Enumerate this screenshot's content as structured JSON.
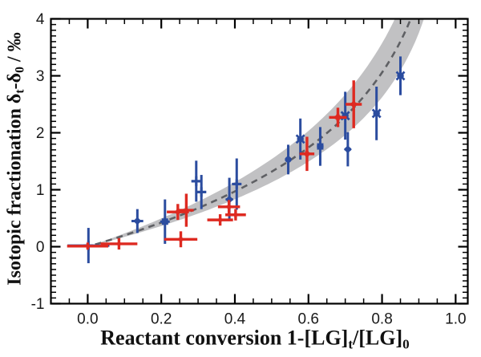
{
  "figure": {
    "background": "#ffffff",
    "frame_color": "#000000",
    "text_color": "#111111",
    "description": "Scatter plot of isotopic fractionation versus reactant conversion with two data series (blue, red), error bars, a dashed Rayleigh model curve and a gray confidence band"
  },
  "chart_data": {
    "type": "scatter",
    "title": "",
    "xlabel": "Reactant conversion 1-[LG]t/[LG]0",
    "ylabel": "Isotopic fractionation δt-δ0 / ‰",
    "xlabel_parts": [
      {
        "t": "Reactant conversion 1-[LG]"
      },
      {
        "sub": "t"
      },
      {
        "t": "/[LG]"
      },
      {
        "sub": "0"
      }
    ],
    "ylabel_parts": [
      {
        "t": "Isotopic fractionation δ"
      },
      {
        "sub": "t"
      },
      {
        "t": "-δ"
      },
      {
        "sub": "0"
      },
      {
        "t": " / ‰"
      }
    ],
    "x_axis": {
      "min": -0.1,
      "max": 1.033,
      "major_ticks": [
        0.0,
        0.2,
        0.4,
        0.6,
        0.8,
        1.0
      ],
      "major_tick_labels": [
        "0.0",
        "0.2",
        "0.4",
        "0.6",
        "0.8",
        "1.0"
      ],
      "minor_tick_step": 0.05
    },
    "y_axis": {
      "min": -1,
      "max": 4,
      "major_ticks": [
        -1,
        0,
        1,
        2,
        3,
        4
      ],
      "major_tick_labels": [
        "-1",
        "0",
        "1",
        "2",
        "3",
        "4"
      ],
      "minor_tick_step": 0.1
    },
    "grid": false,
    "legend": false,
    "model_curve": {
      "form": "y = epsilon * ln(1/(1-x))",
      "epsilon": 1.9,
      "band_epsilon_low": 1.63,
      "band_epsilon_high": 2.22,
      "x_start": 0.02,
      "line_color": "#5f6064",
      "band_color": "#c1c1c3",
      "dash_pattern": [
        8,
        6
      ]
    },
    "series": [
      {
        "name": "blue",
        "color": "#2b4c9f",
        "errorbar_width": 3.0,
        "points": [
          {
            "x": 0.002,
            "y": 0.02,
            "xerr": 0.057,
            "yerr": 0.31,
            "marker": "plus",
            "ms": 6
          },
          {
            "x": 0.135,
            "y": 0.45,
            "xerr": 0.016,
            "yerr": 0.21,
            "marker": "diamond",
            "ms": 5
          },
          {
            "x": 0.21,
            "y": 0.44,
            "xerr": 0.013,
            "yerr": 0.39,
            "marker": "square",
            "ms": 4
          },
          {
            "x": 0.295,
            "y": 1.15,
            "xerr": 0.013,
            "yerr": 0.36,
            "marker": "plus",
            "ms": 6
          },
          {
            "x": 0.309,
            "y": 0.96,
            "xerr": 0.013,
            "yerr": 0.3,
            "marker": "plus",
            "ms": 6
          },
          {
            "x": 0.385,
            "y": 0.83,
            "xerr": 0.01,
            "yerr": 0.38,
            "marker": "diamond",
            "ms": 5
          },
          {
            "x": 0.405,
            "y": 1.1,
            "xerr": 0.01,
            "yerr": 0.45,
            "marker": "plus",
            "ms": 6
          },
          {
            "x": 0.545,
            "y": 1.53,
            "xerr": 0.009,
            "yerr": 0.26,
            "marker": "dot",
            "ms": 4
          },
          {
            "x": 0.578,
            "y": 1.89,
            "xerr": 0.009,
            "yerr": 0.36,
            "marker": "x",
            "ms": 5
          },
          {
            "x": 0.632,
            "y": 1.76,
            "xerr": 0.009,
            "yerr": 0.34,
            "marker": "square",
            "ms": 4
          },
          {
            "x": 0.7,
            "y": 2.3,
            "xerr": 0.009,
            "yerr": 0.42,
            "marker": "x",
            "ms": 5
          },
          {
            "x": 0.707,
            "y": 1.71,
            "xerr": 0.009,
            "yerr": 0.3,
            "marker": "diamond",
            "ms": 5
          },
          {
            "x": 0.785,
            "y": 2.34,
            "xerr": 0.009,
            "yerr": 0.47,
            "marker": "x",
            "ms": 5
          },
          {
            "x": 0.85,
            "y": 3.0,
            "xerr": 0.009,
            "yerr": 0.34,
            "marker": "x",
            "ms": 5
          }
        ]
      },
      {
        "name": "red",
        "color": "#de2a21",
        "errorbar_width": 3.4,
        "points": [
          {
            "x": 0.0,
            "y": 0.01,
            "xerr": 0.056,
            "yerr": 0.06,
            "marker": "star",
            "ms": 5.5
          },
          {
            "x": 0.085,
            "y": 0.05,
            "xerr": 0.05,
            "yerr": 0.1,
            "marker": "star",
            "ms": 5.5
          },
          {
            "x": 0.253,
            "y": 0.13,
            "xerr": 0.045,
            "yerr": 0.14,
            "marker": "star",
            "ms": 6.5
          },
          {
            "x": 0.245,
            "y": 0.61,
            "xerr": 0.03,
            "yerr": 0.14,
            "marker": "star",
            "ms": 7
          },
          {
            "x": 0.268,
            "y": 0.64,
            "xerr": 0.02,
            "yerr": 0.29,
            "marker": "star",
            "ms": 6
          },
          {
            "x": 0.36,
            "y": 0.47,
            "xerr": 0.035,
            "yerr": 0.1,
            "marker": "star",
            "ms": 6
          },
          {
            "x": 0.384,
            "y": 0.7,
            "xerr": 0.03,
            "yerr": 0.12,
            "marker": "star",
            "ms": 6.5
          },
          {
            "x": 0.402,
            "y": 0.56,
            "xerr": 0.028,
            "yerr": 0.1,
            "marker": "star",
            "ms": 6
          },
          {
            "x": 0.596,
            "y": 1.63,
            "xerr": 0.02,
            "yerr": 0.3,
            "marker": "star",
            "ms": 7.5
          },
          {
            "x": 0.68,
            "y": 2.27,
            "xerr": 0.024,
            "yerr": 0.17,
            "marker": "star",
            "ms": 8
          },
          {
            "x": 0.723,
            "y": 2.5,
            "xerr": 0.022,
            "yerr": 0.42,
            "marker": "star",
            "ms": 7.5
          }
        ]
      }
    ]
  }
}
